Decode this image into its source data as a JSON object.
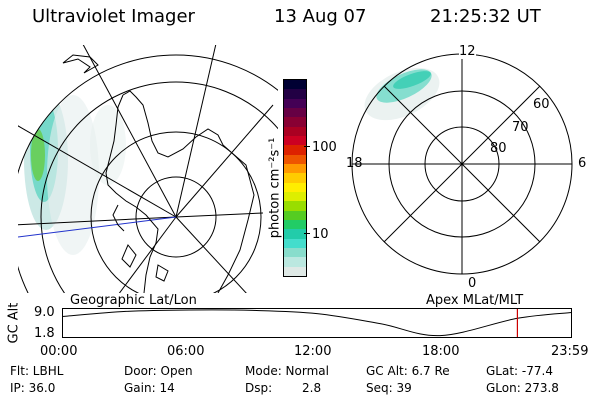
{
  "header": {
    "instrument": "Ultraviolet Imager",
    "date": "13 Aug 07",
    "time": "21:25:32 UT"
  },
  "colorbar": {
    "unit_label": "photon cm⁻²s⁻¹",
    "ticks": [
      "100",
      "10"
    ],
    "colors": [
      "#000033",
      "#220044",
      "#440055",
      "#660044",
      "#880033",
      "#aa0022",
      "#cc0022",
      "#dd2200",
      "#ee5500",
      "#ff9900",
      "#ffcc00",
      "#ffee00",
      "#ddee00",
      "#99dd00",
      "#55cc22",
      "#22cc66",
      "#22ccaa",
      "#44ddcc",
      "#88ddcc",
      "#bbe8e0",
      "#dfe9e6"
    ]
  },
  "left_map": {
    "caption": "Geographic Lat/Lon"
  },
  "right_map": {
    "caption": "Apex MLat/MLT",
    "mlt_labels": [
      "12",
      "18",
      "6",
      "0"
    ],
    "mlat_labels": [
      "60",
      "70",
      "80"
    ]
  },
  "timeline": {
    "ylabel": "GC Alt",
    "ytick_top": "9.0",
    "ytick_bottom": "1.8",
    "xticks": [
      "00:00",
      "06:00",
      "12:00",
      "18:00",
      "23:59"
    ],
    "marker_color": "#cc0000"
  },
  "info": {
    "flt": "Flt: LBHL",
    "ip": "IP: 36.0",
    "door": "Door: Open",
    "gain": "Gain: 14",
    "mode": "Mode: Normal",
    "dsp_label": "Dsp:",
    "dsp_value": "2.8",
    "gc_alt": "GC Alt: 6.7 Re",
    "seq": "Seq: 39",
    "glat": "GLat: -77.4",
    "glon": "GLon: 273.8"
  },
  "chart_data": {
    "type": "line",
    "title": "",
    "xlabel": "",
    "ylabel": "GC Alt",
    "x_labels": [
      "00:00",
      "06:00",
      "12:00",
      "18:00",
      "23:59"
    ],
    "x_hours": [
      0,
      3,
      6,
      9,
      12,
      15,
      17.8,
      21.43,
      23.98
    ],
    "y": [
      7.2,
      8.6,
      9.0,
      8.9,
      8.0,
      5.2,
      1.9,
      6.7,
      8.3
    ],
    "ylim": [
      1.8,
      9.0
    ],
    "current_time_hours": 21.43
  }
}
